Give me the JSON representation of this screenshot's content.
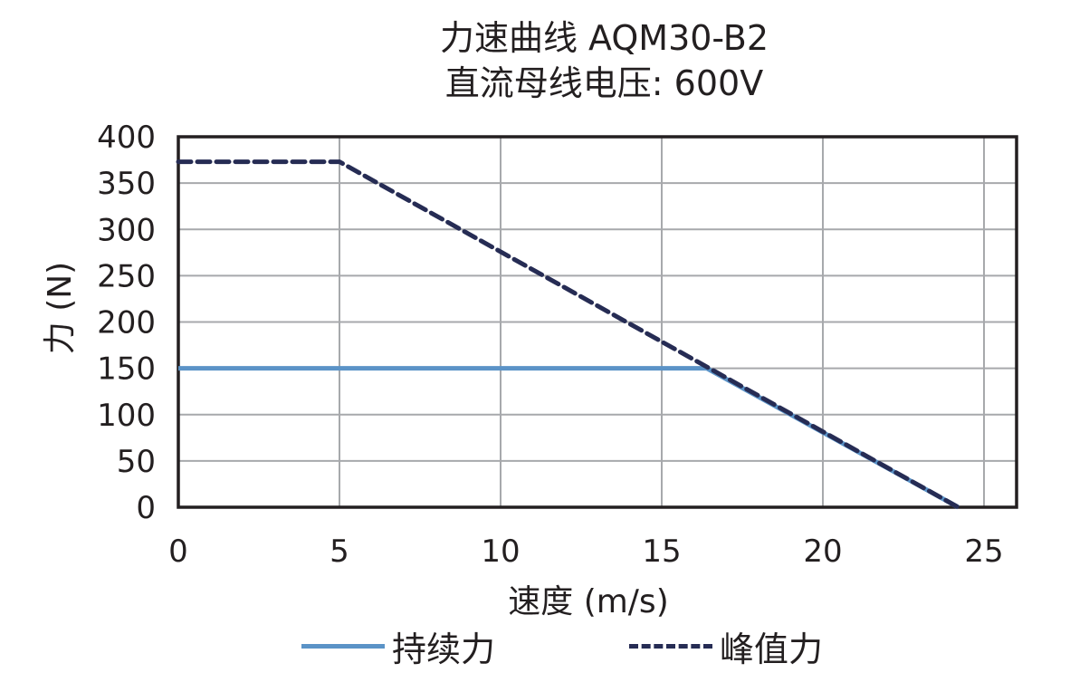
{
  "chart_data": {
    "type": "line",
    "title": "力速曲线 AQM30-B2",
    "subtitle": "直流母线电压: 600V",
    "xlabel": "速度 (m/s)",
    "ylabel": "力 (N)",
    "xlim": [
      0,
      25
    ],
    "ylim": [
      0,
      400
    ],
    "xticks": [
      0,
      5,
      10,
      15,
      20,
      25
    ],
    "yticks": [
      0,
      50,
      100,
      150,
      200,
      250,
      300,
      350,
      400
    ],
    "grid": true,
    "legend_position": "bottom",
    "series": [
      {
        "name": "持续力",
        "style": "solid",
        "color": "#5b93c7",
        "x": [
          0,
          16.4,
          24.2
        ],
        "y": [
          150,
          150,
          0
        ]
      },
      {
        "name": "峰值力",
        "style": "dashed",
        "color": "#262c54",
        "x": [
          0,
          5,
          24.2
        ],
        "y": [
          373,
          373,
          0
        ]
      }
    ]
  }
}
